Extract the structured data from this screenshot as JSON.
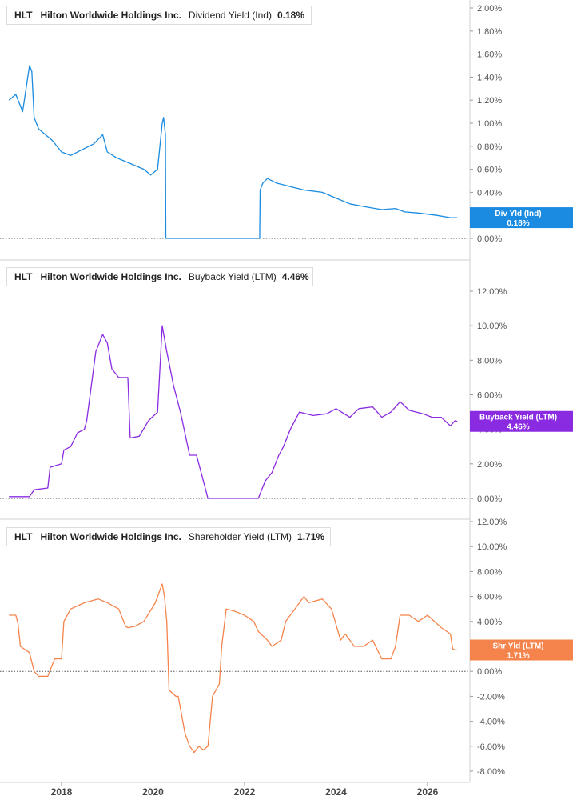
{
  "colors": {
    "blue": "#1a8be0",
    "purple": "#8a2be2",
    "orange": "#f5844c",
    "grid": "#d0d0d0"
  },
  "x_axis": {
    "ticks": [
      "2018",
      "2020",
      "2022",
      "2024",
      "2026"
    ]
  },
  "panels": [
    {
      "ticker": "HLT",
      "company": "Hilton Worldwide Holdings Inc.",
      "metric": "Dividend Yield (Ind)",
      "value": "0.18%",
      "badge_label": "Div Yld (Ind)",
      "badge_value": "0.18%",
      "y_ticks": [
        "2.00%",
        "1.80%",
        "1.60%",
        "1.40%",
        "1.20%",
        "1.00%",
        "0.80%",
        "0.60%",
        "0.40%",
        "0.20%",
        "0.00%"
      ]
    },
    {
      "ticker": "HLT",
      "company": "Hilton Worldwide Holdings Inc.",
      "metric": "Buyback Yield (LTM)",
      "value": "4.46%",
      "badge_label": "Buyback Yield (LTM)",
      "badge_value": "4.46%",
      "y_ticks": [
        "12.00%",
        "10.00%",
        "8.00%",
        "6.00%",
        "4.00%",
        "2.00%",
        "0.00%"
      ]
    },
    {
      "ticker": "HLT",
      "company": "Hilton Worldwide Holdings Inc.",
      "metric": "Shareholder Yield (LTM)",
      "value": "1.71%",
      "badge_label": "Shr Yld (LTM)",
      "badge_value": "1.71%",
      "y_ticks": [
        "12.00%",
        "10.00%",
        "8.00%",
        "6.00%",
        "4.00%",
        "2.00%",
        "0.00%",
        "-2.00%",
        "-4.00%",
        "-6.00%",
        "-8.00%"
      ]
    }
  ],
  "chart_data": [
    {
      "type": "line",
      "title": "HLT Hilton Worldwide Holdings Inc. Dividend Yield (Ind)",
      "ylim": [
        0,
        2
      ],
      "series": [
        {
          "name": "Dividend Yield (Ind)",
          "x": [
            2016.85,
            2017.0,
            2017.15,
            2017.3,
            2017.35,
            2017.4,
            2017.45,
            2017.5,
            2017.8,
            2018.0,
            2018.2,
            2018.5,
            2018.7,
            2018.9,
            2019.0,
            2019.2,
            2019.5,
            2019.8,
            2019.95,
            2020.1,
            2020.2,
            2020.23,
            2020.27,
            2020.28,
            2020.5,
            2021.0,
            2021.5,
            2022.0,
            2022.33,
            2022.34,
            2022.4,
            2022.5,
            2022.7,
            2023.0,
            2023.3,
            2023.7,
            2024.0,
            2024.3,
            2024.7,
            2025.0,
            2025.3,
            2025.5,
            2025.8,
            2026.2,
            2026.5,
            2026.65
          ],
          "y": [
            1.2,
            1.25,
            1.1,
            1.5,
            1.45,
            1.05,
            1.0,
            0.95,
            0.85,
            0.75,
            0.72,
            0.78,
            0.82,
            0.9,
            0.75,
            0.7,
            0.65,
            0.6,
            0.55,
            0.6,
            1.0,
            1.05,
            0.9,
            0.0,
            0.0,
            0.0,
            0.0,
            0.0,
            0.0,
            0.42,
            0.48,
            0.52,
            0.48,
            0.45,
            0.42,
            0.4,
            0.35,
            0.3,
            0.27,
            0.25,
            0.26,
            0.23,
            0.22,
            0.2,
            0.18,
            0.18
          ]
        }
      ]
    },
    {
      "type": "line",
      "title": "HLT Hilton Worldwide Holdings Inc. Buyback Yield (LTM)",
      "ylim": [
        0,
        12
      ],
      "series": [
        {
          "name": "Buyback Yield (LTM)",
          "x": [
            2016.85,
            2017.3,
            2017.4,
            2017.7,
            2017.75,
            2018.0,
            2018.05,
            2018.2,
            2018.35,
            2018.5,
            2018.55,
            2018.75,
            2018.9,
            2019.0,
            2019.1,
            2019.25,
            2019.45,
            2019.5,
            2019.7,
            2019.9,
            2020.1,
            2020.2,
            2020.3,
            2020.45,
            2020.6,
            2020.8,
            2020.95,
            2021.1,
            2021.2,
            2021.4,
            2021.7,
            2022.0,
            2022.3,
            2022.45,
            2022.6,
            2022.75,
            2022.85,
            2023.0,
            2023.2,
            2023.5,
            2023.8,
            2024.0,
            2024.3,
            2024.5,
            2024.8,
            2025.0,
            2025.2,
            2025.4,
            2025.6,
            2025.9,
            2026.1,
            2026.3,
            2026.5,
            2026.6,
            2026.65
          ],
          "y": [
            0.1,
            0.1,
            0.5,
            0.6,
            1.8,
            2.0,
            2.8,
            3.0,
            3.8,
            4.0,
            4.5,
            8.5,
            9.5,
            9.0,
            7.5,
            7.0,
            7.0,
            3.5,
            3.6,
            4.5,
            5.0,
            10.0,
            8.5,
            6.5,
            5.0,
            2.5,
            2.5,
            1.0,
            0.0,
            0.0,
            0.0,
            0.0,
            0.0,
            1.0,
            1.5,
            2.5,
            3.0,
            4.0,
            5.0,
            4.8,
            4.9,
            5.2,
            4.7,
            5.2,
            5.3,
            4.7,
            5.0,
            5.6,
            5.1,
            4.9,
            4.7,
            4.7,
            4.2,
            4.5,
            4.46
          ]
        }
      ]
    },
    {
      "type": "line",
      "title": "HLT Hilton Worldwide Holdings Inc. Shareholder Yield (LTM)",
      "ylim": [
        -8,
        12
      ],
      "series": [
        {
          "name": "Shareholder Yield (LTM)",
          "x": [
            2016.85,
            2017.0,
            2017.05,
            2017.1,
            2017.3,
            2017.4,
            2017.5,
            2017.7,
            2017.85,
            2018.0,
            2018.05,
            2018.2,
            2018.5,
            2018.8,
            2019.0,
            2019.25,
            2019.4,
            2019.45,
            2019.6,
            2019.8,
            2020.05,
            2020.15,
            2020.2,
            2020.25,
            2020.3,
            2020.35,
            2020.5,
            2020.55,
            2020.7,
            2020.8,
            2020.9,
            2021.0,
            2021.1,
            2021.2,
            2021.3,
            2021.45,
            2021.5,
            2021.6,
            2021.8,
            2022.0,
            2022.2,
            2022.3,
            2022.5,
            2022.6,
            2022.8,
            2022.9,
            2023.1,
            2023.3,
            2023.4,
            2023.7,
            2023.9,
            2024.1,
            2024.2,
            2024.4,
            2024.6,
            2024.8,
            2025.0,
            2025.2,
            2025.3,
            2025.4,
            2025.6,
            2025.8,
            2026.0,
            2026.3,
            2026.5,
            2026.55,
            2026.6,
            2026.65
          ],
          "y": [
            4.5,
            4.5,
            3.8,
            2.0,
            1.5,
            0.0,
            -0.4,
            -0.4,
            1.0,
            1.0,
            4.0,
            5.0,
            5.5,
            5.8,
            5.5,
            5.0,
            3.6,
            3.5,
            3.6,
            4.0,
            5.5,
            6.5,
            7.0,
            6.0,
            4.0,
            -1.5,
            -2.0,
            -2.0,
            -5.0,
            -6.0,
            -6.5,
            -6.0,
            -6.3,
            -6.0,
            -2.0,
            -1.0,
            2.0,
            5.0,
            4.8,
            4.5,
            4.0,
            3.2,
            2.5,
            2.0,
            2.5,
            4.0,
            5.0,
            6.0,
            5.5,
            5.8,
            5.0,
            2.5,
            3.0,
            2.0,
            2.0,
            2.5,
            1.0,
            1.0,
            2.0,
            4.5,
            4.5,
            4.0,
            4.5,
            3.5,
            3.0,
            1.8,
            1.71,
            1.71
          ]
        }
      ]
    }
  ]
}
